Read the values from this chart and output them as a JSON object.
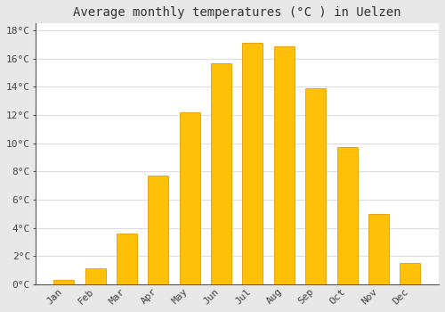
{
  "title": "Average monthly temperatures (°C ) in Uelzen",
  "months": [
    "Jan",
    "Feb",
    "Mar",
    "Apr",
    "May",
    "Jun",
    "Jul",
    "Aug",
    "Sep",
    "Oct",
    "Nov",
    "Dec"
  ],
  "values": [
    0.3,
    1.1,
    3.6,
    7.7,
    12.2,
    15.7,
    17.1,
    16.9,
    13.9,
    9.7,
    5.0,
    1.5
  ],
  "bar_color": "#FFC107",
  "bar_edge_color": "#E69A00",
  "ylim": [
    0,
    18.5
  ],
  "yticks": [
    0,
    2,
    4,
    6,
    8,
    10,
    12,
    14,
    16,
    18
  ],
  "ytick_labels": [
    "0°C",
    "2°C",
    "4°C",
    "6°C",
    "8°C",
    "10°C",
    "12°C",
    "14°C",
    "16°C",
    "18°C"
  ],
  "background_color": "#e8e8e8",
  "plot_bg_color": "#ffffff",
  "grid_color": "#dddddd",
  "title_fontsize": 10,
  "tick_fontsize": 8,
  "bar_width": 0.65
}
